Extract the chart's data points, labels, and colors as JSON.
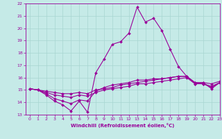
{
  "xlabel": "Windchill (Refroidissement éolien,°C)",
  "xlim": [
    -0.5,
    23
  ],
  "ylim": [
    13,
    22
  ],
  "yticks": [
    13,
    14,
    15,
    16,
    17,
    18,
    19,
    20,
    21,
    22
  ],
  "xticks": [
    0,
    1,
    2,
    3,
    4,
    5,
    6,
    7,
    8,
    9,
    10,
    11,
    12,
    13,
    14,
    15,
    16,
    17,
    18,
    19,
    20,
    21,
    22,
    23
  ],
  "background_color": "#c5eae7",
  "grid_color": "#a8d5d1",
  "line_color": "#990099",
  "lines": [
    {
      "x": [
        0,
        1,
        2,
        3,
        4,
        5,
        6,
        7,
        8,
        9,
        10,
        11,
        12,
        13,
        14,
        15,
        16,
        17,
        18,
        19,
        20,
        21,
        22,
        23
      ],
      "y": [
        15.1,
        15.0,
        14.6,
        14.1,
        13.8,
        13.3,
        14.1,
        13.2,
        16.4,
        17.5,
        18.7,
        18.9,
        19.6,
        21.7,
        20.5,
        20.8,
        19.8,
        18.3,
        16.9,
        16.1,
        15.5,
        15.6,
        15.1,
        15.6
      ]
    },
    {
      "x": [
        0,
        1,
        2,
        3,
        4,
        5,
        6,
        7,
        8,
        9,
        10,
        11,
        12,
        13,
        14,
        15,
        16,
        17,
        18,
        19,
        20,
        21,
        22,
        23
      ],
      "y": [
        15.1,
        15.0,
        14.7,
        14.3,
        14.1,
        13.9,
        14.2,
        14.1,
        14.9,
        15.2,
        15.4,
        15.5,
        15.6,
        15.8,
        15.8,
        15.9,
        15.9,
        16.0,
        16.1,
        16.1,
        15.6,
        15.5,
        15.2,
        15.6
      ]
    },
    {
      "x": [
        0,
        1,
        2,
        3,
        4,
        5,
        6,
        7,
        8,
        9,
        10,
        11,
        12,
        13,
        14,
        15,
        16,
        17,
        18,
        19,
        20,
        21,
        22,
        23
      ],
      "y": [
        15.1,
        15.0,
        14.8,
        14.6,
        14.5,
        14.4,
        14.6,
        14.5,
        14.8,
        15.0,
        15.1,
        15.2,
        15.3,
        15.5,
        15.5,
        15.6,
        15.7,
        15.8,
        15.9,
        16.0,
        15.5,
        15.5,
        15.3,
        15.6
      ]
    },
    {
      "x": [
        0,
        1,
        2,
        3,
        4,
        5,
        6,
        7,
        8,
        9,
        10,
        11,
        12,
        13,
        14,
        15,
        16,
        17,
        18,
        19,
        20,
        21,
        22,
        23
      ],
      "y": [
        15.1,
        15.0,
        14.9,
        14.8,
        14.7,
        14.7,
        14.8,
        14.7,
        15.0,
        15.1,
        15.2,
        15.4,
        15.5,
        15.6,
        15.7,
        15.8,
        15.9,
        16.0,
        16.1,
        16.1,
        15.6,
        15.6,
        15.5,
        15.7
      ]
    }
  ]
}
